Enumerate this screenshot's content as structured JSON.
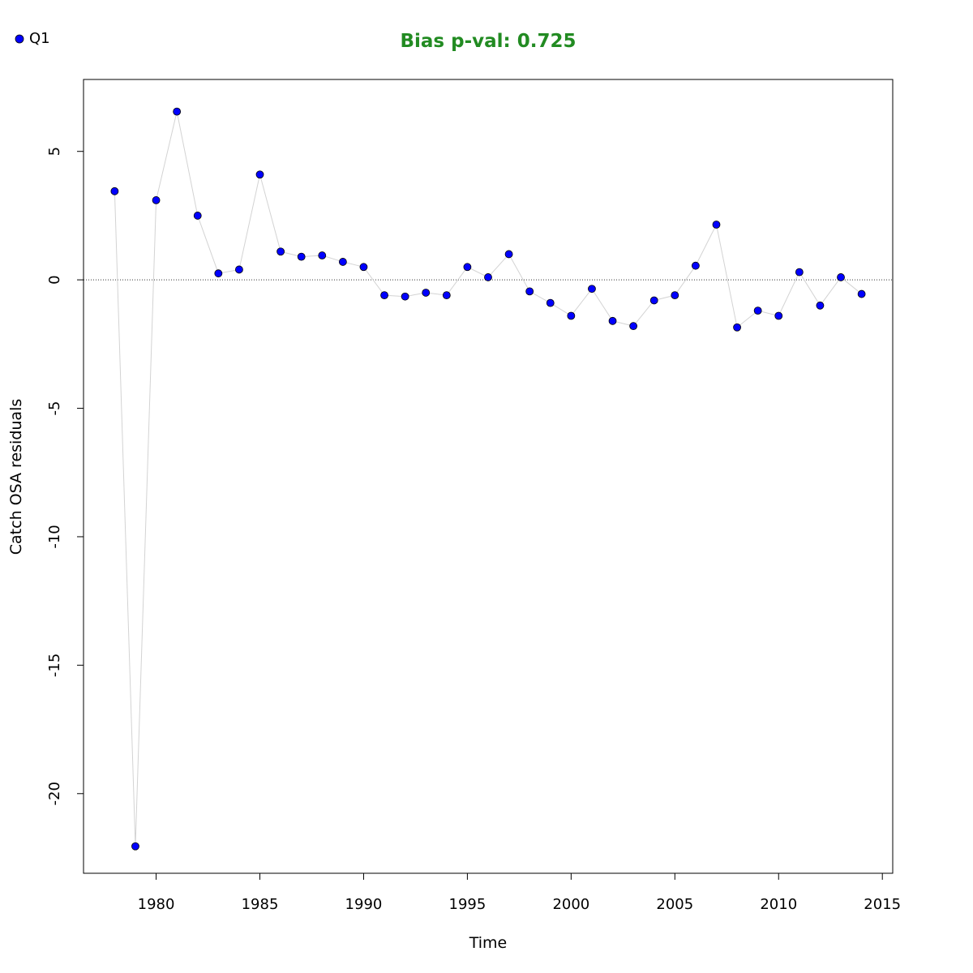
{
  "chart_data": {
    "type": "scatter",
    "title": "Bias p-val: 0.725",
    "title_color": "#228B22",
    "xlabel": "Time",
    "ylabel": "Catch OSA residuals",
    "xlim": [
      1976.5,
      2015.5
    ],
    "ylim": [
      -23.1,
      7.8
    ],
    "x_ticks": [
      1980,
      1985,
      1990,
      1995,
      2000,
      2005,
      2010,
      2015
    ],
    "y_ticks": [
      5,
      0,
      -5,
      -10,
      -15,
      -20
    ],
    "reference_line_y": 0,
    "grid": false,
    "legend_position": "top-left",
    "series": [
      {
        "name": "Q1",
        "color": "#0000ff",
        "line_color": "#d3d3d3",
        "x": [
          1978,
          1979,
          1980,
          1981,
          1982,
          1983,
          1984,
          1985,
          1986,
          1987,
          1988,
          1989,
          1990,
          1991,
          1992,
          1993,
          1994,
          1995,
          1996,
          1997,
          1998,
          1999,
          2000,
          2001,
          2002,
          2003,
          2004,
          2005,
          2006,
          2007,
          2008,
          2009,
          2010,
          2011,
          2012,
          2013,
          2014
        ],
        "y": [
          3.45,
          -22.05,
          3.1,
          6.55,
          2.5,
          0.25,
          0.4,
          4.1,
          1.1,
          0.9,
          0.95,
          0.7,
          0.5,
          -0.6,
          -0.65,
          -0.5,
          -0.6,
          0.5,
          0.1,
          1.0,
          -0.45,
          -0.9,
          -1.4,
          -0.35,
          -1.6,
          -1.8,
          -0.8,
          -0.6,
          0.55,
          2.15,
          -1.85,
          -1.2,
          -1.4,
          0.3,
          -1.0,
          0.1,
          -0.55
        ]
      }
    ]
  }
}
